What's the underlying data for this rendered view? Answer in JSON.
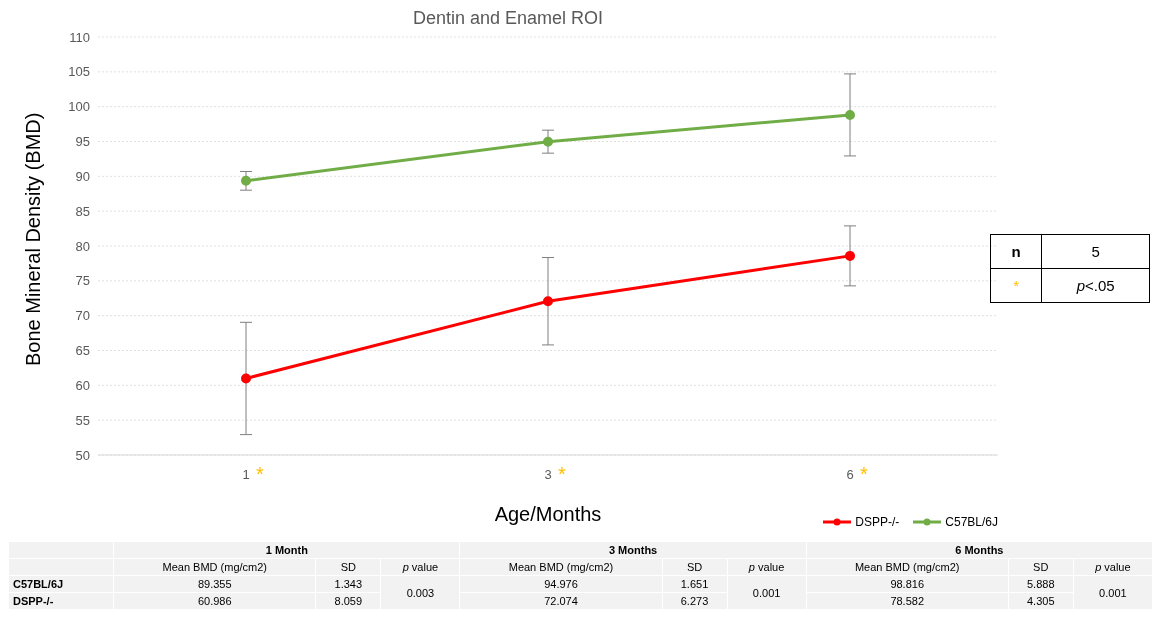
{
  "chart_data": {
    "type": "line",
    "title": "Dentin and Enamel ROI",
    "xlabel": "Age/Months",
    "ylabel": "Bone Mineral Density (BMD)",
    "categories": [
      "1",
      "3",
      "6"
    ],
    "series": [
      {
        "name": "DSPP-/-",
        "color": "#ff0000",
        "values": [
          60.986,
          72.074,
          78.582
        ],
        "errors": [
          8.059,
          6.273,
          4.305
        ]
      },
      {
        "name": "C57BL/6J",
        "color": "#70ad47",
        "values": [
          89.355,
          94.976,
          98.816
        ],
        "errors": [
          1.343,
          1.651,
          5.888
        ]
      }
    ],
    "ylim": [
      50,
      110
    ],
    "yticks": [
      50,
      55,
      60,
      65,
      70,
      75,
      80,
      85,
      90,
      95,
      100,
      105,
      110
    ],
    "grid": "y",
    "legend": "bottom right",
    "marker": "circle",
    "line_style": "solid",
    "data_labels": true,
    "annotations": [
      "n",
      "5",
      "*",
      "p<.05",
      "1 Month",
      "3 Months",
      "6 Months",
      "Mean BMD (mg/cm2)",
      "SD",
      "p value",
      "0.003",
      "0.001",
      "0.001",
      "*",
      "*",
      "*",
      "1.343",
      "1.651",
      "5.888",
      "8.059",
      "6.273",
      "4.305"
    ]
  }
}
